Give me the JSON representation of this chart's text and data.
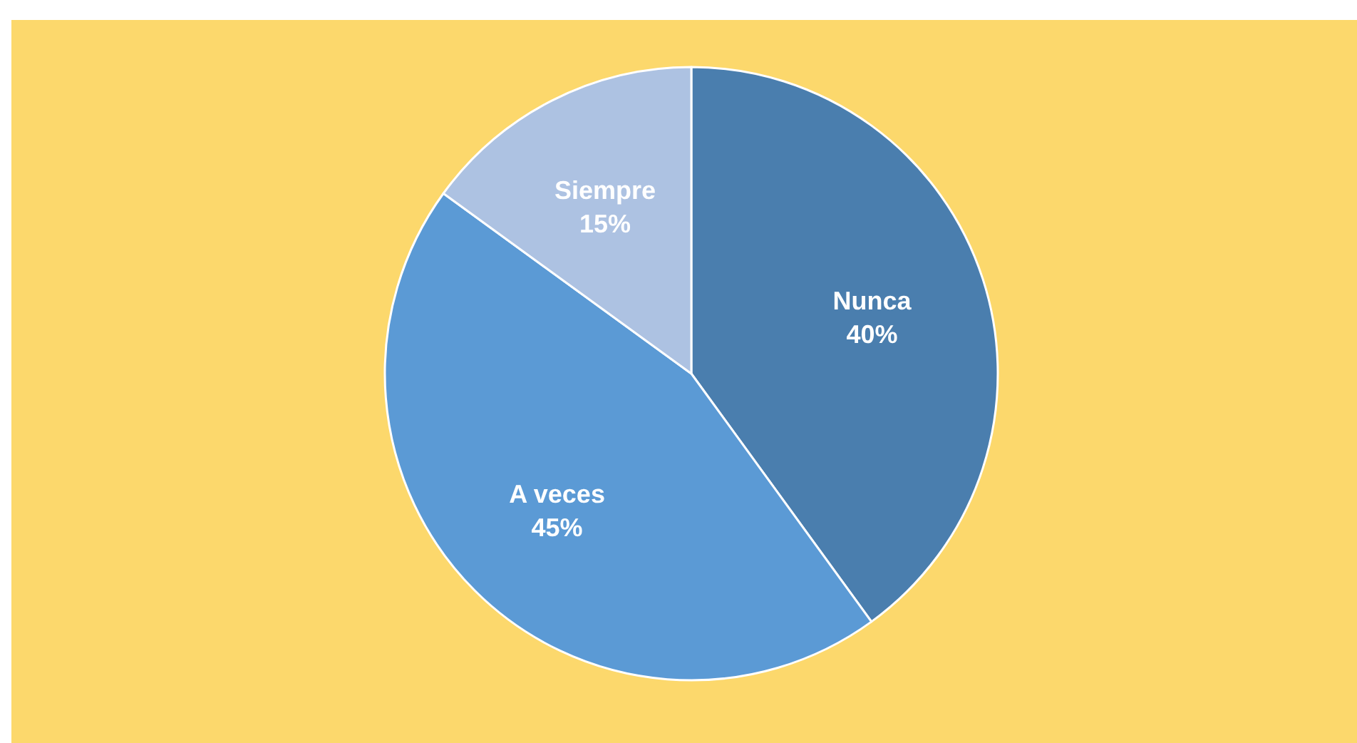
{
  "chart_data": {
    "type": "pie",
    "categories": [
      "Nunca",
      "A veces",
      "Siempre"
    ],
    "values": [
      40,
      45,
      15
    ],
    "colors": [
      "#4a7eae",
      "#5b9ad5",
      "#adc2e2"
    ],
    "value_labels": [
      "40%",
      "45%",
      "15%"
    ]
  }
}
